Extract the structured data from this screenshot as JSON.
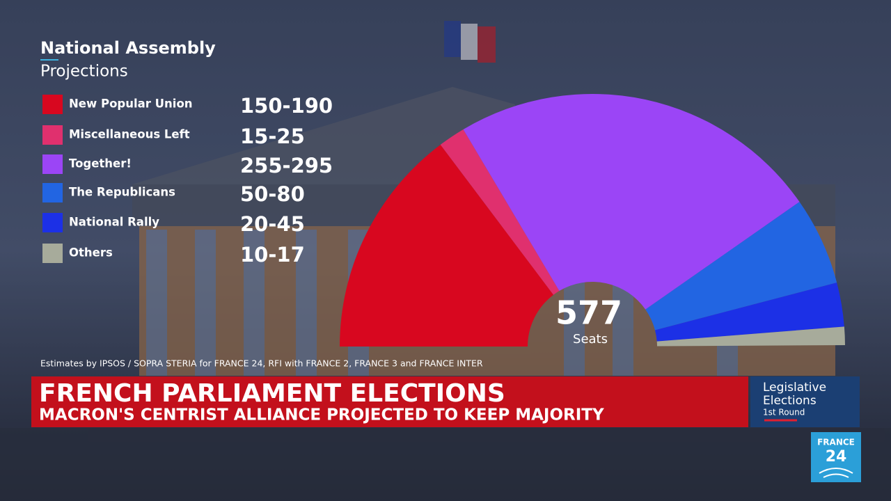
{
  "chart_data": {
    "type": "semicircle",
    "title": "National Assembly",
    "subtitle": "Projections",
    "categories": [
      "New Popular Union",
      "Miscellaneous Left",
      "Together!",
      "The Republicans",
      "National Rally",
      "Others"
    ],
    "low": [
      150,
      15,
      255,
      50,
      20,
      10
    ],
    "high": [
      190,
      25,
      295,
      80,
      45,
      17
    ],
    "value_labels": [
      "150-190",
      "15-25",
      "255-295",
      "50-80",
      "20-45",
      "10-17"
    ],
    "colors": [
      "#d8071f",
      "#e0306e",
      "#9b45f6",
      "#2265e2",
      "#1c30e6",
      "#a7ab9b"
    ],
    "total": 577,
    "total_label": "Seats",
    "source": "Estimates by IPSOS / SOPRA STERIA for FRANCE 24, RFI with FRANCE 2, FRANCE 3 and FRANCE INTER"
  },
  "banner": {
    "headline": "FRENCH PARLIAMENT ELECTIONS",
    "subheadline": "MACRON'S CENTRIST ALLIANCE PROJECTED TO KEEP MAJORITY"
  },
  "badge": {
    "line1": "Legislative",
    "line2": "Elections",
    "line3": "1st Round"
  },
  "logo": {
    "line1": "FRANCE",
    "line2": "24"
  }
}
